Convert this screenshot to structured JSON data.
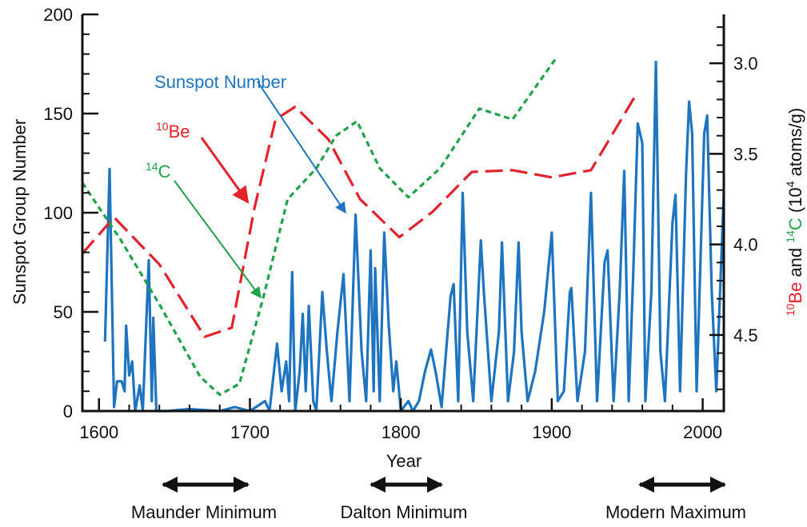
{
  "chart_data": {
    "type": "line",
    "xlabel": "Year",
    "ylabel": "Sunspot Group Number",
    "y2label": [
      {
        "text": "10",
        "sup": true,
        "color": "#e3222b"
      },
      {
        "text": "Be",
        "color": "#e3222b"
      },
      {
        "text": " and "
      },
      {
        "text": "14",
        "sup": true,
        "color": "#1fa24a"
      },
      {
        "text": "C",
        "color": "#1fa24a"
      },
      {
        "text": " (10"
      },
      {
        "text": "4",
        "sup": true
      },
      {
        "text": " atoms/g)"
      }
    ],
    "xlim": [
      1589,
      2014
    ],
    "xticks": [
      1600,
      1700,
      1800,
      1900,
      2000
    ],
    "xticks_minor": [
      1620,
      1640,
      1660,
      1680,
      1720,
      1740,
      1760,
      1780,
      1820,
      1840,
      1860,
      1880,
      1920,
      1940,
      1960,
      1980
    ],
    "ylim": [
      0,
      200
    ],
    "yticks": [
      0,
      50,
      100,
      150,
      200
    ],
    "yticks_minor": [
      10,
      20,
      30,
      40,
      60,
      70,
      80,
      90,
      110,
      120,
      130,
      140,
      160,
      170,
      180,
      190
    ],
    "y2lim": [
      4.92,
      2.73
    ],
    "y2ticks": [
      {
        "value": 3,
        "label": "3.0"
      },
      3.5,
      {
        "value": 4,
        "label": "4.0"
      },
      4.5
    ],
    "y2ticks_minor": [
      2.8,
      2.9,
      3.1,
      3.2,
      3.3,
      3.4,
      3.6,
      3.7,
      3.8,
      3.9,
      4.1,
      4.2,
      4.3,
      4.4,
      4.6,
      4.7,
      4.8
    ],
    "series": [
      {
        "name": "Sunspot Number",
        "color": "#1f74bf",
        "style": "solid",
        "x": [
          1604,
          1607,
          1610,
          1612,
          1615,
          1617,
          1618,
          1620,
          1622,
          1624,
          1627,
          1629,
          1633,
          1635,
          1636,
          1638,
          1645,
          1660,
          1680,
          1690,
          1700,
          1710,
          1713,
          1718,
          1721,
          1724,
          1726,
          1728,
          1730,
          1733,
          1735,
          1737,
          1739,
          1742,
          1744,
          1748,
          1751,
          1754,
          1758,
          1762,
          1766,
          1770,
          1774,
          1777,
          1780,
          1782,
          1783,
          1786,
          1789,
          1792,
          1795,
          1797,
          1800,
          1805,
          1808,
          1812,
          1816,
          1820,
          1823,
          1827,
          1833,
          1835,
          1838,
          1841,
          1844,
          1848,
          1853,
          1855,
          1860,
          1865,
          1867,
          1871,
          1875,
          1878,
          1880,
          1884,
          1889,
          1895,
          1900,
          1904,
          1908,
          1912,
          1913,
          1917,
          1922,
          1926,
          1930,
          1935,
          1937,
          1941,
          1945,
          1948,
          1951,
          1954,
          1957,
          1960,
          1962,
          1966,
          1969,
          1972,
          1975,
          1980,
          1982,
          1985,
          1989,
          1991,
          1993,
          1996,
          2001,
          2003,
          2006,
          2009,
          2014
        ],
        "values": [
          35,
          122,
          2,
          15,
          15,
          10,
          43,
          18,
          25,
          0,
          13,
          0,
          76,
          5,
          47,
          0,
          0,
          1,
          0,
          2,
          0,
          5,
          0,
          34,
          10,
          25,
          5,
          70,
          0,
          20,
          49,
          10,
          53,
          5,
          0,
          60,
          30,
          5,
          40,
          69,
          5,
          99,
          30,
          5,
          81,
          10,
          72,
          5,
          90,
          43,
          10,
          25,
          0,
          5,
          0,
          5,
          20,
          31,
          20,
          2,
          58,
          64,
          5,
          110,
          40,
          5,
          86,
          60,
          5,
          40,
          85,
          5,
          30,
          85,
          40,
          5,
          20,
          50,
          90,
          5,
          10,
          60,
          62,
          5,
          30,
          110,
          5,
          75,
          81,
          5,
          60,
          121,
          5,
          70,
          145,
          135,
          5,
          60,
          176,
          30,
          5,
          95,
          109,
          10,
          120,
          156,
          140,
          10,
          140,
          149,
          60,
          10,
          110
        ]
      },
      {
        "color": "#e3222b",
        "style": "long-dash",
        "axis": "y2",
        "x": [
          1589,
          1610,
          1640,
          1670,
          1688,
          1703,
          1717,
          1730,
          1752,
          1773,
          1799,
          1821,
          1847,
          1874,
          1900,
          1926,
          1956
        ],
        "values": [
          4.05,
          3.85,
          4.11,
          4.51,
          4.46,
          3.8,
          3.31,
          3.24,
          3.42,
          3.75,
          3.96,
          3.82,
          3.6,
          3.59,
          3.63,
          3.59,
          3.17
        ]
      },
      {
        "color": "#1fa24a",
        "style": "short-dash",
        "axis": "y2",
        "x": [
          1589,
          1614,
          1640,
          1667,
          1680,
          1693,
          1709,
          1725,
          1744,
          1757,
          1771,
          1786,
          1805,
          1826,
          1852,
          1874,
          1903
        ],
        "values": [
          3.66,
          3.97,
          4.33,
          4.73,
          4.83,
          4.77,
          4.29,
          3.75,
          3.58,
          3.4,
          3.32,
          3.58,
          3.74,
          3.58,
          3.25,
          3.31,
          2.97
        ]
      }
    ],
    "annotations": [
      {
        "sup": "10",
        "text": "Be",
        "color": "#e3222b"
      },
      {
        "sup": "14",
        "text": "C",
        "color": "#1fa24a"
      }
    ],
    "periods": [
      "Maunder Minimum",
      "Dalton Minimum",
      "Modern Maximum"
    ]
  }
}
